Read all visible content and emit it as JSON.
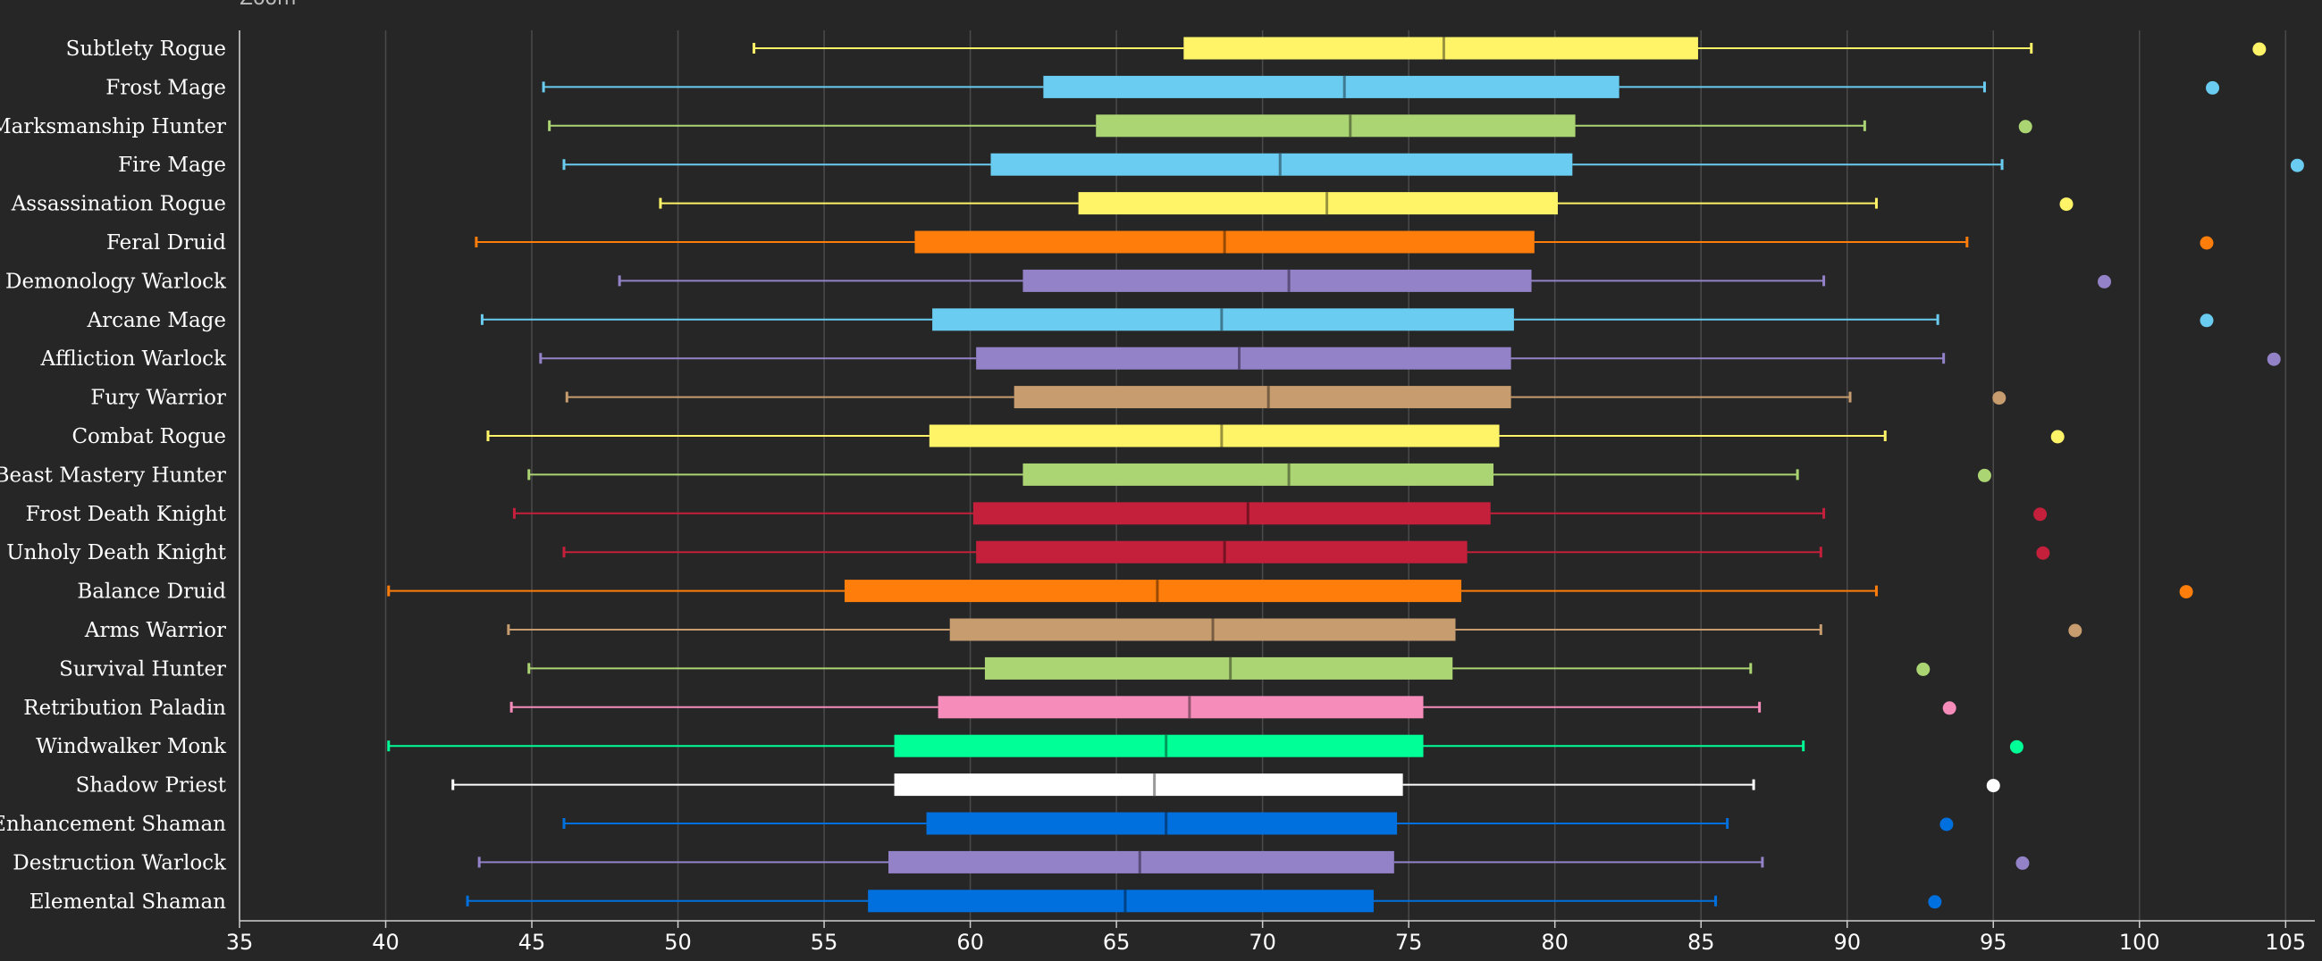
{
  "zoom_label": "Zoom",
  "chart_data": {
    "type": "boxplot",
    "orientation": "horizontal",
    "title": "",
    "xlabel": "",
    "ylabel": "",
    "xlim": [
      35,
      106
    ],
    "x_ticks": [
      35,
      40,
      45,
      50,
      55,
      60,
      65,
      70,
      75,
      80,
      85,
      90,
      95,
      100,
      105
    ],
    "grid": true,
    "legend": "none",
    "series": [
      {
        "name": "Subtlety Rogue",
        "color": "#fff468",
        "min": 52.6,
        "q1": 67.3,
        "median": 76.2,
        "q3": 84.9,
        "max": 96.3,
        "outlier": 104.1
      },
      {
        "name": "Frost Mage",
        "color": "#69ccf0",
        "min": 45.4,
        "q1": 62.5,
        "median": 72.8,
        "q3": 82.2,
        "max": 94.7,
        "outlier": 102.5
      },
      {
        "name": "Marksmanship Hunter",
        "color": "#abd473",
        "min": 45.6,
        "q1": 64.3,
        "median": 73.0,
        "q3": 80.7,
        "max": 90.6,
        "outlier": 96.1
      },
      {
        "name": "Fire Mage",
        "color": "#69ccf0",
        "min": 46.1,
        "q1": 60.7,
        "median": 70.6,
        "q3": 80.6,
        "max": 95.3,
        "outlier": 105.4
      },
      {
        "name": "Assassination Rogue",
        "color": "#fff468",
        "min": 49.4,
        "q1": 63.7,
        "median": 72.2,
        "q3": 80.1,
        "max": 91.0,
        "outlier": 97.5
      },
      {
        "name": "Feral Druid",
        "color": "#ff7d0a",
        "min": 43.1,
        "q1": 58.1,
        "median": 68.7,
        "q3": 79.3,
        "max": 94.1,
        "outlier": 102.3
      },
      {
        "name": "Demonology Warlock",
        "color": "#9482c9",
        "min": 48.0,
        "q1": 61.8,
        "median": 70.9,
        "q3": 79.2,
        "max": 89.2,
        "outlier": 98.8
      },
      {
        "name": "Arcane Mage",
        "color": "#69ccf0",
        "min": 43.3,
        "q1": 58.7,
        "median": 68.6,
        "q3": 78.6,
        "max": 93.1,
        "outlier": 102.3
      },
      {
        "name": "Affliction Warlock",
        "color": "#9482c9",
        "min": 45.3,
        "q1": 60.2,
        "median": 69.2,
        "q3": 78.5,
        "max": 93.3,
        "outlier": 104.6
      },
      {
        "name": "Fury Warrior",
        "color": "#c79c6e",
        "min": 46.2,
        "q1": 61.5,
        "median": 70.2,
        "q3": 78.5,
        "max": 90.1,
        "outlier": 95.2
      },
      {
        "name": "Combat Rogue",
        "color": "#fff468",
        "min": 43.5,
        "q1": 58.6,
        "median": 68.6,
        "q3": 78.1,
        "max": 91.3,
        "outlier": 97.2
      },
      {
        "name": "Beast Mastery Hunter",
        "color": "#abd473",
        "min": 44.9,
        "q1": 61.8,
        "median": 70.9,
        "q3": 77.9,
        "max": 88.3,
        "outlier": 94.7
      },
      {
        "name": "Frost Death Knight",
        "color": "#c41f3b",
        "min": 44.4,
        "q1": 60.1,
        "median": 69.5,
        "q3": 77.8,
        "max": 89.2,
        "outlier": 96.6
      },
      {
        "name": "Unholy Death Knight",
        "color": "#c41f3b",
        "min": 46.1,
        "q1": 60.2,
        "median": 68.7,
        "q3": 77.0,
        "max": 89.1,
        "outlier": 96.7
      },
      {
        "name": "Balance Druid",
        "color": "#ff7d0a",
        "min": 40.1,
        "q1": 55.7,
        "median": 66.4,
        "q3": 76.8,
        "max": 91.0,
        "outlier": 101.6
      },
      {
        "name": "Arms Warrior",
        "color": "#c79c6e",
        "min": 44.2,
        "q1": 59.3,
        "median": 68.3,
        "q3": 76.6,
        "max": 89.1,
        "outlier": 97.8
      },
      {
        "name": "Survival Hunter",
        "color": "#abd473",
        "min": 44.9,
        "q1": 60.5,
        "median": 68.9,
        "q3": 76.5,
        "max": 86.7,
        "outlier": 92.6
      },
      {
        "name": "Retribution Paladin",
        "color": "#f58cba",
        "min": 44.3,
        "q1": 58.9,
        "median": 67.5,
        "q3": 75.5,
        "max": 87.0,
        "outlier": 93.5
      },
      {
        "name": "Windwalker Monk",
        "color": "#00ff96",
        "min": 40.1,
        "q1": 57.4,
        "median": 66.7,
        "q3": 75.5,
        "max": 88.5,
        "outlier": 95.8
      },
      {
        "name": "Shadow Priest",
        "color": "#ffffff",
        "min": 42.3,
        "q1": 57.4,
        "median": 66.3,
        "q3": 74.8,
        "max": 86.8,
        "outlier": 95.0
      },
      {
        "name": "Enhancement Shaman",
        "color": "#0070de",
        "min": 46.1,
        "q1": 58.5,
        "median": 66.7,
        "q3": 74.6,
        "max": 85.9,
        "outlier": 93.4
      },
      {
        "name": "Destruction Warlock",
        "color": "#9482c9",
        "min": 43.2,
        "q1": 57.2,
        "median": 65.8,
        "q3": 74.5,
        "max": 87.1,
        "outlier": 96.0
      },
      {
        "name": "Elemental Shaman",
        "color": "#0070de",
        "min": 42.8,
        "q1": 56.5,
        "median": 65.3,
        "q3": 73.8,
        "max": 85.5,
        "outlier": 93.0
      }
    ]
  }
}
